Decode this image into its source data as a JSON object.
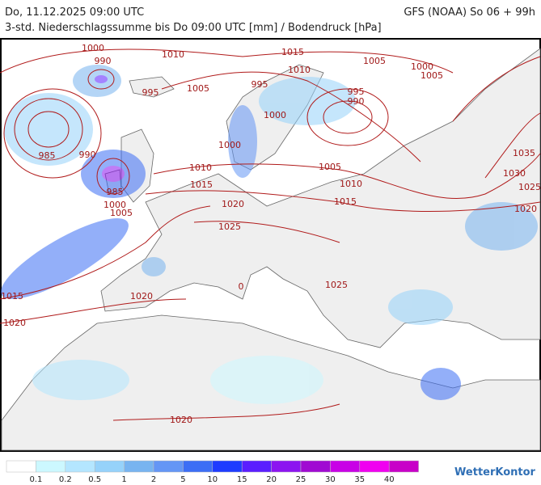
{
  "header": {
    "left": "Do, 11.12.2025 09:00 UTC",
    "right": "GFS (NOAA) So 06 + 99h",
    "subtitle": "3-std. Niederschlagssumme bis Do 09:00 UTC [mm] / Bodendruck [hPa]"
  },
  "map": {
    "isobar_labels": [
      "1000",
      "990",
      "1010",
      "1015",
      "1005",
      "1000",
      "1005",
      "995",
      "1005",
      "995",
      "1010",
      "995",
      "990",
      "1000",
      "985",
      "990",
      "985",
      "1000",
      "1010",
      "1005",
      "1035",
      "1030",
      "1025",
      "1015",
      "1010",
      "1020",
      "1015",
      "1000",
      "1005",
      "1020",
      "1025",
      "1025",
      "0",
      "1020",
      "1015",
      "1020",
      "1020"
    ]
  },
  "legend": {
    "colors": [
      "#ffffff",
      "#ccf8ff",
      "#b4e6ff",
      "#96d2fa",
      "#78b4f0",
      "#6496f5",
      "#3c6ef5",
      "#1e3cff",
      "#5a1eff",
      "#8c14f0",
      "#a00ad2",
      "#c800e6",
      "#f000f0",
      "#c800c8"
    ],
    "labels": [
      "0.1",
      "0.2",
      "0.5",
      "1",
      "2",
      "5",
      "10",
      "15",
      "20",
      "25",
      "30",
      "35",
      "40"
    ]
  },
  "logo": "WetterKontor"
}
